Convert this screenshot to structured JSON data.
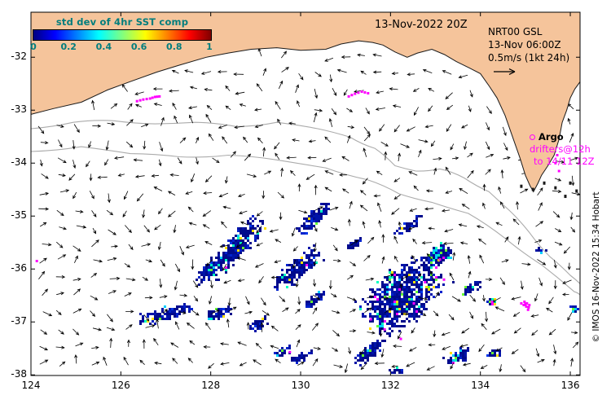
{
  "chart_data": {
    "type": "map",
    "title": "13-Nov-2022 20Z",
    "colors": {
      "land": "#F5C49B",
      "sea": "#FFFFFF",
      "drifter": "#FF00FF",
      "arrow": "#000000",
      "coast": "#1A1A1A",
      "contour": "#ABABAB",
      "teal": "#007D7D"
    },
    "x_axis": {
      "ticks": [
        124,
        126,
        128,
        130,
        132,
        134,
        136
      ],
      "range": [
        124,
        136.22
      ],
      "unit": "degE"
    },
    "y_axis": {
      "ticks": [
        -32,
        -33,
        -34,
        -35,
        -36,
        -37,
        -38
      ],
      "range": [
        -38.01,
        -31.15
      ],
      "unit": "degN"
    },
    "colorbar": {
      "label": "std dev of 4hr SST comp",
      "tick_labels": [
        "0",
        "0.2",
        "0.4",
        "0.6",
        "0.8",
        "1"
      ],
      "colormap": "jet",
      "stops": [
        [
          "#000080",
          0
        ],
        [
          "#0000FF",
          12
        ],
        [
          "#00FFFF",
          37
        ],
        [
          "#80FF80",
          50
        ],
        [
          "#FFFF00",
          63
        ],
        [
          "#FF0000",
          88
        ],
        [
          "#800000",
          100
        ]
      ]
    },
    "legend": {
      "model": "NRT00 GSL",
      "valid": "13-Nov 06:00Z",
      "scale": "0.5m/s (1kt 24h)"
    },
    "argo": {
      "label": "Argo",
      "line1": "drifters@12h",
      "line2": "to 14/11 12Z"
    },
    "copyright": "© IMOS 16-Nov-2022 15:34 Hobart",
    "quiver": {
      "spacing_px": 21,
      "note": "surface current vectors, one arrow per grid cell"
    },
    "coastline": [
      [
        124.0,
        -33.08
      ],
      [
        124.5,
        -32.97
      ],
      [
        125.12,
        -32.85
      ],
      [
        125.7,
        -32.62
      ],
      [
        126.21,
        -32.46
      ],
      [
        126.8,
        -32.28
      ],
      [
        127.3,
        -32.15
      ],
      [
        127.9,
        -32.0
      ],
      [
        128.39,
        -31.92
      ],
      [
        128.9,
        -31.85
      ],
      [
        129.47,
        -31.82
      ],
      [
        130.0,
        -31.87
      ],
      [
        130.56,
        -31.85
      ],
      [
        130.9,
        -31.75
      ],
      [
        131.29,
        -31.69
      ],
      [
        131.6,
        -31.72
      ],
      [
        131.83,
        -31.77
      ],
      [
        132.1,
        -31.9
      ],
      [
        132.37,
        -32.0
      ],
      [
        132.6,
        -31.92
      ],
      [
        132.92,
        -31.85
      ],
      [
        133.2,
        -31.95
      ],
      [
        133.46,
        -32.08
      ],
      [
        133.75,
        -32.2
      ],
      [
        134.0,
        -32.31
      ],
      [
        134.2,
        -32.55
      ],
      [
        134.37,
        -32.77
      ],
      [
        134.55,
        -33.1
      ],
      [
        134.73,
        -33.54
      ],
      [
        134.88,
        -33.9
      ],
      [
        135.0,
        -34.23
      ],
      [
        135.1,
        -34.42
      ],
      [
        135.18,
        -34.54
      ],
      [
        135.28,
        -34.38
      ],
      [
        135.36,
        -34.23
      ],
      [
        135.5,
        -34.05
      ],
      [
        135.64,
        -33.85
      ],
      [
        135.75,
        -33.55
      ],
      [
        135.82,
        -33.23
      ],
      [
        135.92,
        -33.0
      ],
      [
        136.0,
        -32.77
      ],
      [
        136.1,
        -32.6
      ],
      [
        136.22,
        -32.46
      ]
    ],
    "shelf_contours": [
      [
        [
          124.0,
          -33.35
        ],
        [
          124.94,
          -33.23
        ],
        [
          125.85,
          -33.2
        ],
        [
          126.76,
          -33.26
        ],
        [
          127.66,
          -33.23
        ],
        [
          128.57,
          -33.31
        ],
        [
          129.47,
          -33.23
        ],
        [
          130.38,
          -33.35
        ],
        [
          131.1,
          -33.51
        ],
        [
          131.65,
          -33.72
        ],
        [
          132.1,
          -34.05
        ],
        [
          132.56,
          -34.15
        ],
        [
          133.1,
          -34.11
        ],
        [
          133.64,
          -34.28
        ],
        [
          134.19,
          -34.54
        ],
        [
          134.64,
          -34.89
        ],
        [
          135.09,
          -35.31
        ],
        [
          135.55,
          -35.77
        ],
        [
          136.0,
          -36.12
        ],
        [
          136.22,
          -36.28
        ]
      ],
      [
        [
          124.0,
          -33.78
        ],
        [
          125.12,
          -33.69
        ],
        [
          126.21,
          -33.82
        ],
        [
          127.3,
          -33.88
        ],
        [
          128.39,
          -33.85
        ],
        [
          129.47,
          -33.94
        ],
        [
          130.56,
          -34.09
        ],
        [
          131.47,
          -34.31
        ],
        [
          132.19,
          -34.58
        ],
        [
          132.92,
          -34.74
        ],
        [
          133.73,
          -34.95
        ],
        [
          134.55,
          -35.42
        ],
        [
          135.36,
          -35.92
        ],
        [
          136.09,
          -36.43
        ],
        [
          136.22,
          -36.49
        ]
      ]
    ],
    "sst_patches": [
      {
        "lon": 128.51,
        "lat": -35.58,
        "len": 1.9,
        "wid": 0.43,
        "ang": -47,
        "n": 320,
        "accent": 0.06,
        "mag": 0.01
      },
      {
        "lon": 127.93,
        "lat": -36.0,
        "len": 0.91,
        "wid": 0.22,
        "ang": -47,
        "n": 90,
        "accent": 0.05,
        "mag": 0
      },
      {
        "lon": 129.87,
        "lat": -36.0,
        "len": 1.36,
        "wid": 0.4,
        "ang": -40,
        "n": 220,
        "accent": 0.07,
        "mag": 0.01
      },
      {
        "lon": 130.25,
        "lat": -35.02,
        "len": 1.0,
        "wid": 0.28,
        "ang": -40,
        "n": 120,
        "accent": 0.05,
        "mag": 0
      },
      {
        "lon": 132.23,
        "lat": -36.49,
        "len": 2.17,
        "wid": 1.08,
        "ang": -42,
        "n": 780,
        "accent": 0.13,
        "mag": 0.02
      },
      {
        "lon": 133.03,
        "lat": -35.72,
        "len": 0.73,
        "wid": 0.34,
        "ang": -30,
        "n": 140,
        "accent": 0.3,
        "mag": 0.02
      },
      {
        "lon": 127.03,
        "lat": -36.82,
        "len": 1.45,
        "wid": 0.28,
        "ang": -15,
        "n": 120,
        "accent": 0.04,
        "mag": 0
      },
      {
        "lon": 128.17,
        "lat": -36.82,
        "len": 0.62,
        "wid": 0.22,
        "ang": -20,
        "n": 55,
        "accent": 0.04,
        "mag": 0
      },
      {
        "lon": 129.02,
        "lat": -37.05,
        "len": 0.54,
        "wid": 0.18,
        "ang": -30,
        "n": 50,
        "accent": 0.04,
        "mag": 0
      },
      {
        "lon": 129.6,
        "lat": -37.54,
        "len": 0.47,
        "wid": 0.15,
        "ang": -30,
        "n": 35,
        "accent": 0.04,
        "mag": 0
      },
      {
        "lon": 129.98,
        "lat": -37.65,
        "len": 0.54,
        "wid": 0.18,
        "ang": -20,
        "n": 45,
        "accent": 0.05,
        "mag": 0.04
      },
      {
        "lon": 131.5,
        "lat": -37.54,
        "len": 0.87,
        "wid": 0.25,
        "ang": -35,
        "n": 100,
        "accent": 0.06,
        "mag": 0
      },
      {
        "lon": 133.48,
        "lat": -37.63,
        "len": 0.62,
        "wid": 0.25,
        "ang": -25,
        "n": 70,
        "accent": 0.2,
        "mag": 0.02
      },
      {
        "lon": 133.77,
        "lat": -36.34,
        "len": 0.54,
        "wid": 0.18,
        "ang": -30,
        "n": 40,
        "accent": 0.08,
        "mag": 0
      },
      {
        "lon": 132.37,
        "lat": -35.17,
        "len": 0.73,
        "wid": 0.18,
        "ang": -30,
        "n": 45,
        "accent": 0.06,
        "mag": 0
      },
      {
        "lon": 134.24,
        "lat": -36.6,
        "len": 0.25,
        "wid": 0.15,
        "ang": 0,
        "n": 20,
        "accent": 0.45,
        "mag": 0.08
      },
      {
        "lon": 136.07,
        "lat": -36.72,
        "len": 0.22,
        "wid": 0.12,
        "ang": 0,
        "n": 14,
        "accent": 0.1,
        "mag": 0
      },
      {
        "lon": 135.33,
        "lat": -35.63,
        "len": 0.3,
        "wid": 0.12,
        "ang": 0,
        "n": 14,
        "accent": 0.1,
        "mag": 0
      },
      {
        "lon": 134.28,
        "lat": -37.57,
        "len": 0.35,
        "wid": 0.15,
        "ang": -20,
        "n": 24,
        "accent": 0.08,
        "mag": 0
      },
      {
        "lon": 132.1,
        "lat": -37.91,
        "len": 0.5,
        "wid": 0.12,
        "ang": -10,
        "n": 24,
        "accent": 0.05,
        "mag": 0
      },
      {
        "lon": 130.3,
        "lat": -36.55,
        "len": 0.6,
        "wid": 0.2,
        "ang": -40,
        "n": 60,
        "accent": 0.05,
        "mag": 0
      },
      {
        "lon": 131.2,
        "lat": -35.5,
        "len": 0.4,
        "wid": 0.15,
        "ang": -35,
        "n": 30,
        "accent": 0.05,
        "mag": 0
      }
    ],
    "drifter_tracks": [
      [
        [
          126.36,
          -32.83
        ],
        [
          126.5,
          -32.8
        ],
        [
          126.65,
          -32.78
        ],
        [
          126.76,
          -32.75
        ],
        [
          126.86,
          -32.74
        ]
      ],
      [
        [
          131.07,
          -32.74
        ],
        [
          131.21,
          -32.69
        ],
        [
          131.36,
          -32.65
        ],
        [
          131.5,
          -32.68
        ]
      ],
      [
        [
          134.91,
          -36.65
        ],
        [
          135.02,
          -36.71
        ],
        [
          134.98,
          -36.62
        ],
        [
          135.09,
          -36.68
        ],
        [
          135.06,
          -36.77
        ]
      ]
    ],
    "drifter_points": [
      [
        124.13,
        -35.85
      ],
      [
        133.19,
        -36.2
      ],
      [
        134.26,
        -36.62
      ],
      [
        129.76,
        -37.57
      ],
      [
        135.71,
        -33.85
      ],
      [
        135.67,
        -34.0
      ],
      [
        135.75,
        -34.15
      ],
      [
        131.56,
        -36.95
      ],
      [
        131.87,
        -37.14
      ],
      [
        132.23,
        -37.32
      ],
      [
        132.52,
        -36.65
      ],
      [
        132.77,
        -36.25
      ],
      [
        133.1,
        -35.82
      ]
    ],
    "islands": [
      [
        134.91,
        -34.43
      ],
      [
        135.17,
        -34.49
      ],
      [
        135.42,
        -34.37
      ],
      [
        135.67,
        -34.46
      ],
      [
        136.0,
        -34.37
      ],
      [
        136.14,
        -34.52
      ],
      [
        135.89,
        -34.62
      ]
    ]
  }
}
